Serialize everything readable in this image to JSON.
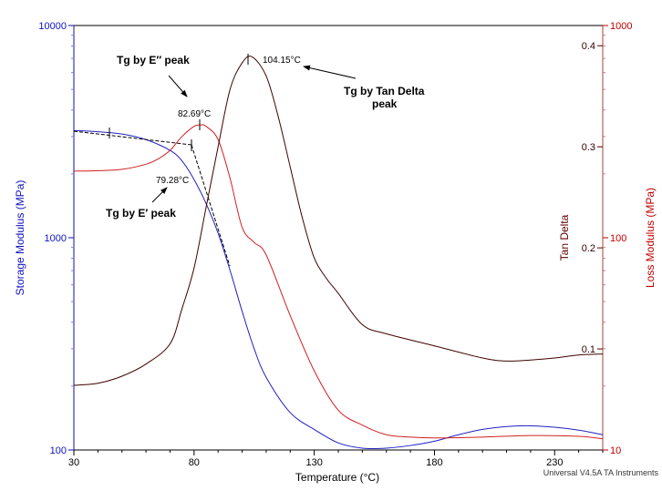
{
  "chart_data": {
    "type": "line",
    "xlabel": "Temperature (°C)",
    "xlim": [
      30,
      250
    ],
    "xticks": [
      30,
      80,
      130,
      180,
      230
    ],
    "axes": {
      "storage": {
        "label": "Storage Modulus (MPa)",
        "scale": "log",
        "lim": [
          100,
          10000
        ],
        "ticks": [
          "100",
          "1000",
          "10000"
        ],
        "color": "#1010a0"
      },
      "tan_delta": {
        "label": "Tan Delta",
        "scale": "linear",
        "lim": [
          0,
          0.42
        ],
        "ticks": [
          "0.1",
          "0.2",
          "0.3",
          "0.4"
        ],
        "color": "#500000"
      },
      "loss": {
        "label": "Loss Modulus (MPa)",
        "scale": "log",
        "lim": [
          10,
          1000
        ],
        "ticks": [
          "10",
          "100",
          "1000"
        ],
        "color": "#c00000"
      }
    },
    "series": [
      {
        "axis": "storage",
        "color": "#2020c0",
        "x": [
          30,
          40,
          50,
          60,
          70,
          75,
          80,
          85,
          90,
          95,
          100,
          105,
          110,
          120,
          130,
          140,
          150,
          160,
          170,
          180,
          190,
          200,
          210,
          220,
          230,
          240,
          250
        ],
        "y": [
          3200,
          3160,
          3080,
          2900,
          2580,
          2300,
          1880,
          1450,
          1050,
          700,
          450,
          300,
          220,
          150,
          125,
          108,
          102,
          102,
          105,
          110,
          118,
          125,
          129,
          130,
          128,
          124,
          118
        ]
      },
      {
        "axis": "loss",
        "color": "#d02020",
        "x": [
          30,
          40,
          50,
          60,
          65,
          70,
          75,
          80,
          82.69,
          85,
          90,
          95,
          100,
          105,
          110,
          120,
          130,
          140,
          150,
          160,
          170,
          180,
          200,
          220,
          240,
          250
        ],
        "y": [
          206,
          207,
          210,
          222,
          235,
          258,
          300,
          335,
          340,
          335,
          290,
          190,
          112,
          95,
          83,
          43,
          23.6,
          15.4,
          13.1,
          11.8,
          11.5,
          11.4,
          11.5,
          11.7,
          11.6,
          11.3
        ]
      },
      {
        "axis": "tan_delta",
        "color": "#400000",
        "x": [
          30,
          40,
          50,
          60,
          70,
          75,
          80,
          85,
          90,
          95,
          100,
          104.15,
          110,
          115,
          120,
          125,
          130,
          135,
          140,
          150,
          160,
          180,
          200,
          210,
          220,
          230,
          240,
          250
        ],
        "y": [
          0.064,
          0.066,
          0.073,
          0.085,
          0.105,
          0.14,
          0.18,
          0.24,
          0.3,
          0.357,
          0.383,
          0.389,
          0.37,
          0.33,
          0.28,
          0.23,
          0.19,
          0.17,
          0.155,
          0.124,
          0.115,
          0.103,
          0.091,
          0.088,
          0.089,
          0.091,
          0.094,
          0.095
        ]
      }
    ],
    "annotations": {
      "tg_loss_peak": "Tg by E″ peak",
      "tg_storage": "Tg by E′ peak",
      "tg_tan_line1": "Tg by Tan Delta",
      "tg_tan_line2": "peak",
      "val_tan": "104.15°C",
      "val_loss": "82.69°C",
      "val_storage": "79.28°C"
    },
    "footer": "Universal V4.5A TA Instruments"
  }
}
